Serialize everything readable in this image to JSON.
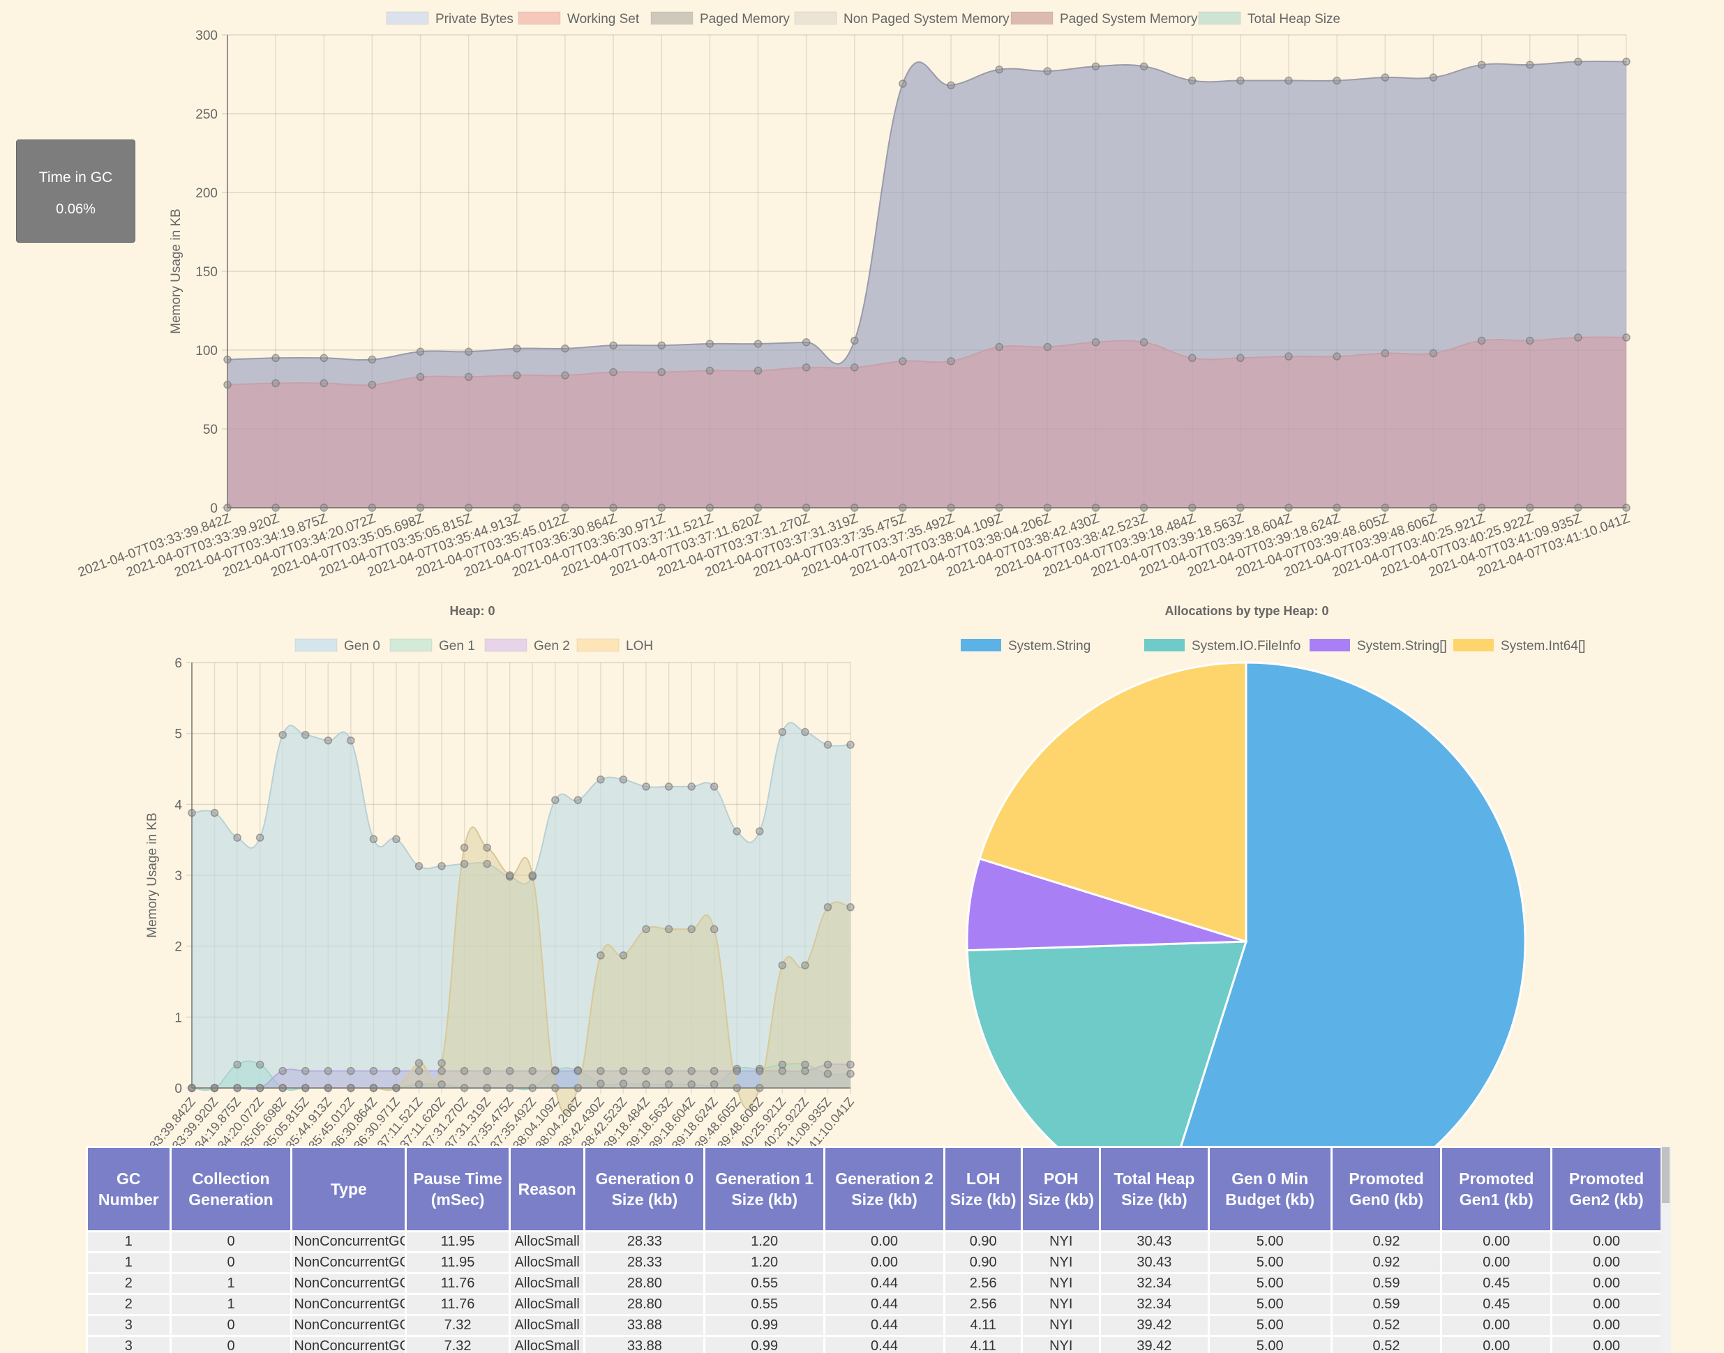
{
  "gc_card": {
    "title": "Time in GC",
    "value": "0.06%"
  },
  "chart_data": [
    {
      "type": "area",
      "title": "",
      "ylabel": "Memory Usage in KB",
      "ylim": [
        0,
        300
      ],
      "yticks": [
        0,
        50,
        100,
        150,
        200,
        250,
        300
      ],
      "legend_position": "top",
      "categories": [
        "2021-04-07T03:33:39.842Z",
        "2021-04-07T03:33:39.920Z",
        "2021-04-07T03:34:19.875Z",
        "2021-04-07T03:34:20.072Z",
        "2021-04-07T03:35:05.698Z",
        "2021-04-07T03:35:05.815Z",
        "2021-04-07T03:35:44.913Z",
        "2021-04-07T03:35:45.012Z",
        "2021-04-07T03:36:30.864Z",
        "2021-04-07T03:36:30.971Z",
        "2021-04-07T03:37:11.521Z",
        "2021-04-07T03:37:11.620Z",
        "2021-04-07T03:37:31.270Z",
        "2021-04-07T03:37:31.319Z",
        "2021-04-07T03:37:35.475Z",
        "2021-04-07T03:37:35.492Z",
        "2021-04-07T03:38:04.109Z",
        "2021-04-07T03:38:04.206Z",
        "2021-04-07T03:38:42.430Z",
        "2021-04-07T03:38:42.523Z",
        "2021-04-07T03:39:18.484Z",
        "2021-04-07T03:39:18.563Z",
        "2021-04-07T03:39:18.604Z",
        "2021-04-07T03:39:18.624Z",
        "2021-04-07T03:39:48.605Z",
        "2021-04-07T03:39:48.606Z",
        "2021-04-07T03:40:25.921Z",
        "2021-04-07T03:40:25.922Z",
        "2021-04-07T03:41:09.935Z",
        "2021-04-07T03:41:10.041Z"
      ],
      "series": [
        {
          "name": "Private Bytes",
          "color": "#dbe2ec",
          "fill": "rgba(150,160,190,0.62)",
          "stroke": "#9a9aaa",
          "values": [
            94,
            95,
            95,
            94,
            99,
            99,
            101,
            101,
            103,
            103,
            104,
            104,
            105,
            106,
            269,
            268,
            278,
            277,
            280,
            280,
            271,
            271,
            271,
            271,
            273,
            273,
            281,
            281,
            283,
            283
          ]
        },
        {
          "name": "Working Set",
          "color": "#f6c8bc",
          "fill": "rgba(215,150,160,0.5)",
          "stroke": "#c9a0a8",
          "values": [
            78,
            79,
            79,
            78,
            83,
            83,
            84,
            84,
            86,
            86,
            87,
            87,
            89,
            89,
            93,
            93,
            102,
            102,
            105,
            105,
            95,
            95,
            96,
            96,
            98,
            98,
            106,
            106,
            108,
            108
          ]
        },
        {
          "name": "Paged Memory",
          "color": "#cec9bb",
          "fill": "none",
          "stroke": "#888",
          "values": [
            0,
            0,
            0,
            0,
            0,
            0,
            0,
            0,
            0,
            0,
            0,
            0,
            0,
            0,
            0,
            0,
            0,
            0,
            0,
            0,
            0,
            0,
            0,
            0,
            0,
            0,
            0,
            0,
            0,
            0
          ]
        },
        {
          "name": "Non Paged System Memory",
          "color": "#ebe4d5",
          "fill": "none",
          "stroke": "none",
          "values": [
            0,
            0,
            0,
            0,
            0,
            0,
            0,
            0,
            0,
            0,
            0,
            0,
            0,
            0,
            0,
            0,
            0,
            0,
            0,
            0,
            0,
            0,
            0,
            0,
            0,
            0,
            0,
            0,
            0,
            0
          ]
        },
        {
          "name": "Paged System Memory",
          "color": "#dbbab0",
          "fill": "none",
          "stroke": "none",
          "values": [
            0,
            0,
            0,
            0,
            0,
            0,
            0,
            0,
            0,
            0,
            0,
            0,
            0,
            0,
            0,
            0,
            0,
            0,
            0,
            0,
            0,
            0,
            0,
            0,
            0,
            0,
            0,
            0,
            0,
            0
          ]
        },
        {
          "name": "Total Heap Size",
          "color": "#cfe3d2",
          "fill": "none",
          "stroke": "none",
          "values": [
            0,
            0,
            0,
            0,
            0,
            0,
            0,
            0,
            0,
            0,
            0,
            0,
            0,
            0,
            0,
            0,
            0,
            0,
            0,
            0,
            0,
            0,
            0,
            0,
            0,
            0,
            0,
            0,
            0,
            0
          ]
        }
      ]
    },
    {
      "type": "area",
      "title": "Heap: 0",
      "ylabel": "Memory Usage in KB",
      "ylim": [
        0,
        6
      ],
      "yticks": [
        0,
        1,
        2,
        3,
        4,
        5,
        6
      ],
      "legend_position": "top",
      "categories": [
        "33:39.842Z",
        "33:39.920Z",
        "34:19.875Z",
        "34:20.072Z",
        "35:05.698Z",
        "35:05.815Z",
        "35:44.913Z",
        "35:45.012Z",
        "36:30.864Z",
        "36:30.971Z",
        "37:11.521Z",
        "37:11.620Z",
        "37:31.270Z",
        "37:31.319Z",
        "37:35.475Z",
        "37:35.492Z",
        "38:04.109Z",
        "38:04.206Z",
        "38:42.430Z",
        "38:42.523Z",
        "39:18.484Z",
        "39:18.563Z",
        "39:18.604Z",
        "39:18.624Z",
        "39:48.605Z",
        "39:48.606Z",
        "40:25.921Z",
        "40:25.922Z",
        "41:09.935Z",
        "41:10.041Z"
      ],
      "series": [
        {
          "name": "Gen 0",
          "color": "#d4e6ec",
          "fill": "rgba(190,220,230,0.6)",
          "stroke": "#b8d0d6",
          "values": [
            3.88,
            3.88,
            3.53,
            3.53,
            4.98,
            4.98,
            4.9,
            4.9,
            3.51,
            3.51,
            3.13,
            3.13,
            3.16,
            3.16,
            2.98,
            2.98,
            4.06,
            4.06,
            4.35,
            4.35,
            4.25,
            4.25,
            4.25,
            4.25,
            3.62,
            3.62,
            5.02,
            5.02,
            4.84,
            4.84
          ]
        },
        {
          "name": "Gen 1",
          "color": "#d3ead8",
          "fill": "rgba(160,220,210,0.45)",
          "stroke": "#a8d4cc",
          "values": [
            0,
            0,
            0.33,
            0.33,
            0,
            0,
            0,
            0,
            0,
            0,
            0.05,
            0.05,
            0,
            0,
            0,
            0,
            0.25,
            0.25,
            0.06,
            0.06,
            0.05,
            0.05,
            0.05,
            0.05,
            0.27,
            0.27,
            0.33,
            0.33,
            0.2,
            0.2
          ]
        },
        {
          "name": "Gen 2",
          "color": "#e7d4e8",
          "fill": "rgba(180,170,225,0.45)",
          "stroke": "#b6aede",
          "values": [
            0,
            0,
            0,
            0,
            0.24,
            0.24,
            0.24,
            0.24,
            0.24,
            0.24,
            0.24,
            0.24,
            0.24,
            0.24,
            0.24,
            0.24,
            0.24,
            0.24,
            0.24,
            0.24,
            0.24,
            0.24,
            0.24,
            0.24,
            0.24,
            0.24,
            0.24,
            0.24,
            0.33,
            0.33
          ]
        },
        {
          "name": "LOH",
          "color": "#fde5b8",
          "fill": "rgba(215,205,150,0.45)",
          "stroke": "#d8c89a",
          "values": [
            0,
            0,
            0,
            0,
            0,
            0,
            0,
            0,
            0,
            0,
            0.35,
            0.35,
            3.39,
            3.39,
            3.0,
            3.0,
            0,
            0,
            1.87,
            1.87,
            2.24,
            2.24,
            2.24,
            2.24,
            0,
            0,
            1.73,
            1.73,
            2.55,
            2.55
          ]
        }
      ]
    },
    {
      "type": "pie",
      "title": "Allocations by type Heap: 0",
      "legend_position": "top",
      "labels": [
        "System.String",
        "System.IO.FileInfo",
        "System.String[]",
        "System.Int64[]"
      ],
      "values": [
        54.9,
        19.6,
        5.3,
        20.2
      ],
      "colors": [
        "#5cb2e6",
        "#6fcbc7",
        "#a97ff5",
        "#fed46c"
      ]
    }
  ],
  "table": {
    "headers": [
      "GC Number",
      "Collection Generation",
      "Type",
      "Pause Time (mSec)",
      "Reason",
      "Generation 0 Size (kb)",
      "Generation 1 Size (kb)",
      "Generation 2 Size (kb)",
      "LOH Size (kb)",
      "POH Size (kb)",
      "Total Heap Size (kb)",
      "Gen 0 Min Budget (kb)",
      "Promoted Gen0 (kb)",
      "Promoted Gen1 (kb)",
      "Promoted Gen2 (kb)"
    ],
    "rows": [
      [
        "1",
        "0",
        "NonConcurrentGC",
        "11.95",
        "AllocSmall",
        "28.33",
        "1.20",
        "0.00",
        "0.90",
        "NYI",
        "30.43",
        "5.00",
        "0.92",
        "0.00",
        "0.00"
      ],
      [
        "1",
        "0",
        "NonConcurrentGC",
        "11.95",
        "AllocSmall",
        "28.33",
        "1.20",
        "0.00",
        "0.90",
        "NYI",
        "30.43",
        "5.00",
        "0.92",
        "0.00",
        "0.00"
      ],
      [
        "2",
        "1",
        "NonConcurrentGC",
        "11.76",
        "AllocSmall",
        "28.80",
        "0.55",
        "0.44",
        "2.56",
        "NYI",
        "32.34",
        "5.00",
        "0.59",
        "0.45",
        "0.00"
      ],
      [
        "2",
        "1",
        "NonConcurrentGC",
        "11.76",
        "AllocSmall",
        "28.80",
        "0.55",
        "0.44",
        "2.56",
        "NYI",
        "32.34",
        "5.00",
        "0.59",
        "0.45",
        "0.00"
      ],
      [
        "3",
        "0",
        "NonConcurrentGC",
        "7.32",
        "AllocSmall",
        "33.88",
        "0.99",
        "0.44",
        "4.11",
        "NYI",
        "39.42",
        "5.00",
        "0.52",
        "0.00",
        "0.00"
      ],
      [
        "3",
        "0",
        "NonConcurrentGC",
        "7.32",
        "AllocSmall",
        "33.88",
        "0.99",
        "0.44",
        "4.11",
        "NYI",
        "39.42",
        "5.00",
        "0.52",
        "0.00",
        "0.00"
      ]
    ]
  }
}
